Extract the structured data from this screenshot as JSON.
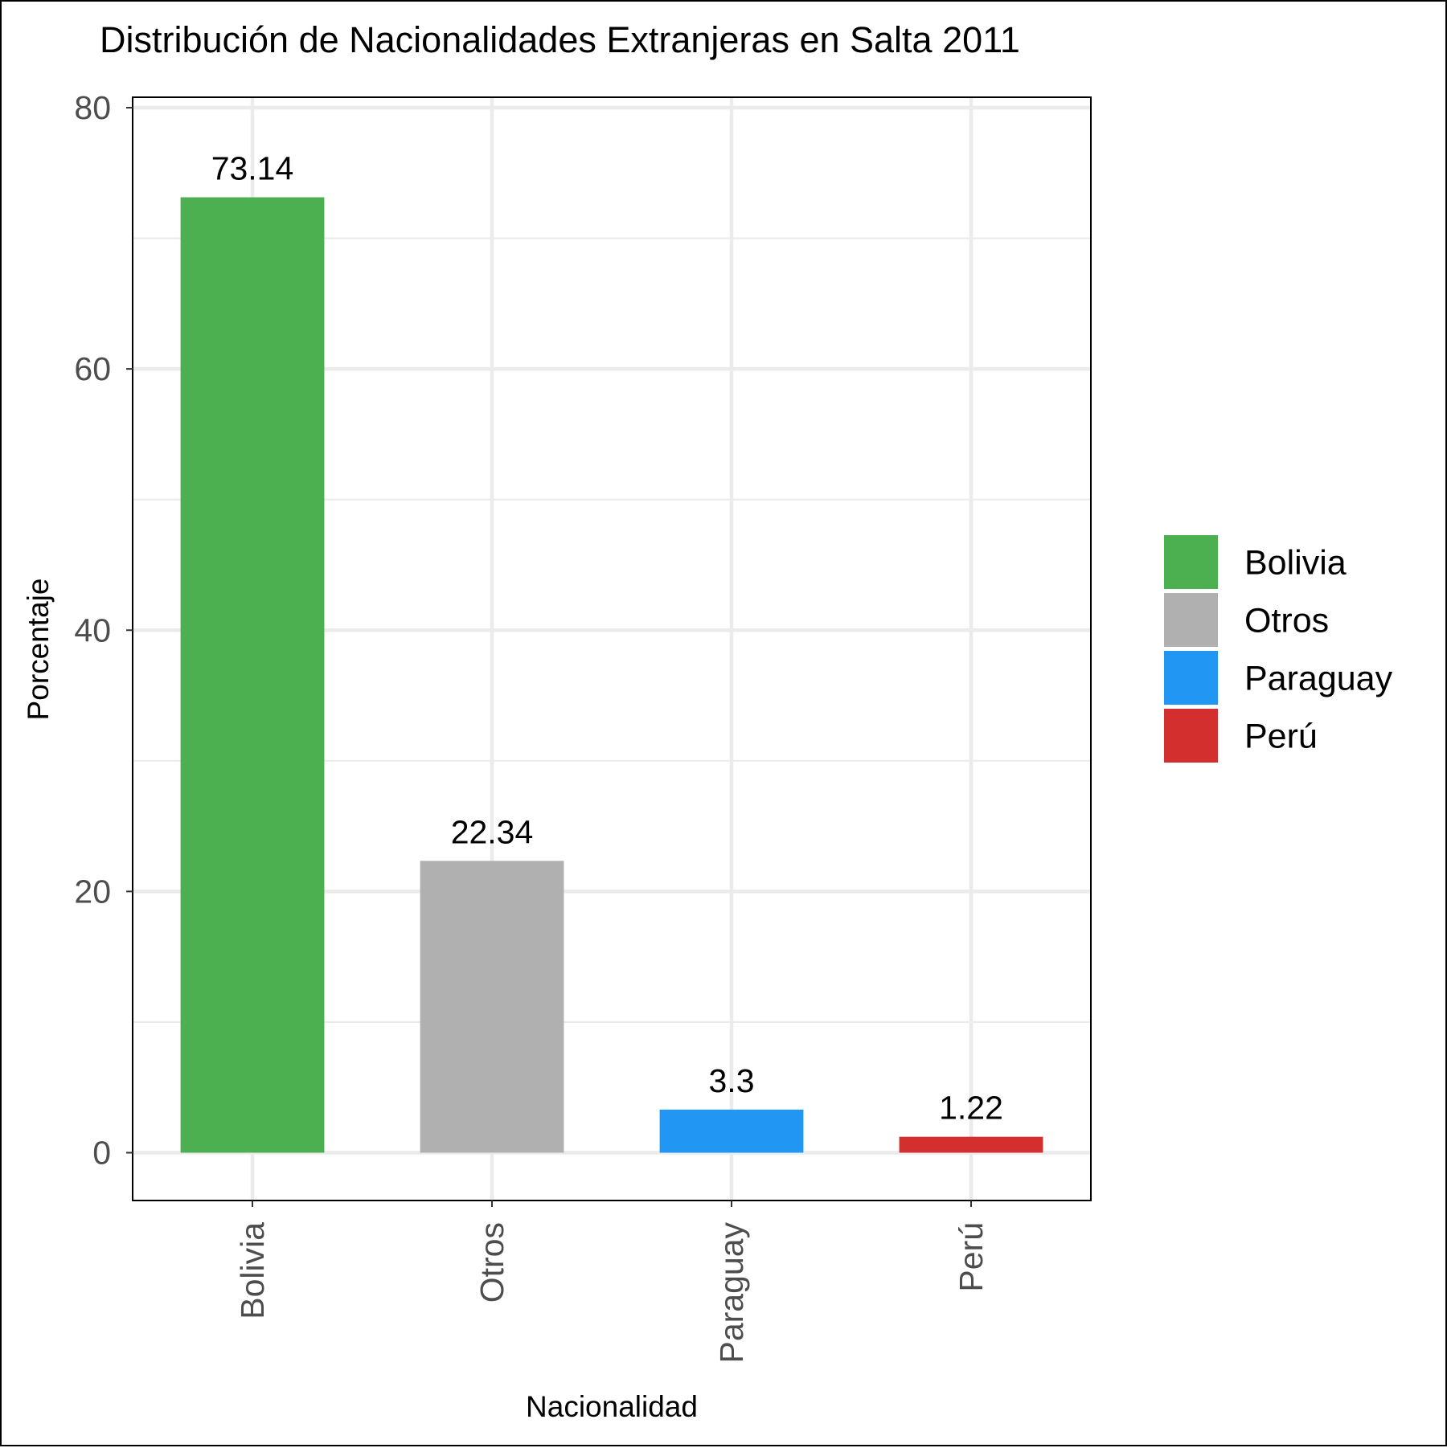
{
  "chart_data": {
    "type": "bar",
    "title": "Distribución de Nacionalidades Extranjeras en Salta 2011",
    "xlabel": "Nacionalidad",
    "ylabel": "Porcentaje",
    "categories": [
      "Bolivia",
      "Otros",
      "Paraguay",
      "Perú"
    ],
    "values": [
      73.14,
      22.34,
      3.3,
      1.22
    ],
    "value_labels": [
      "73.14",
      "22.34",
      "3.3",
      "1.22"
    ],
    "colors": [
      "#4caf50",
      "#b0b0b0",
      "#2196f3",
      "#d32f2f"
    ],
    "ylim": [
      -3.66,
      80.8
    ],
    "yticks": [
      0,
      20,
      40,
      60,
      80
    ],
    "ytick_labels": [
      "0",
      "20",
      "40",
      "60",
      "80"
    ],
    "grid": true,
    "legend": {
      "position": "right",
      "entries": [
        "Bolivia",
        "Otros",
        "Paraguay",
        "Perú"
      ]
    }
  }
}
